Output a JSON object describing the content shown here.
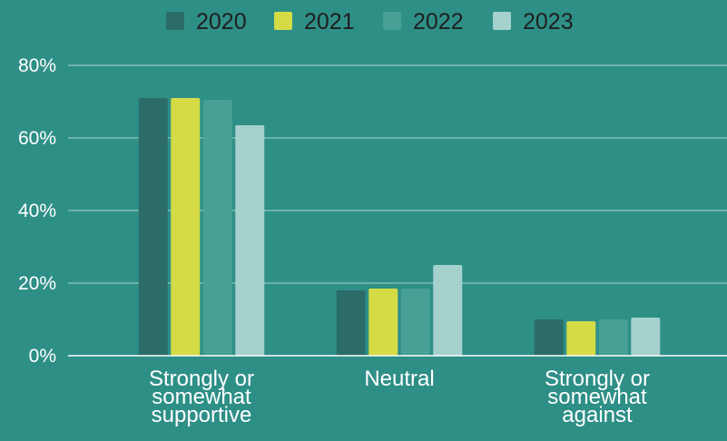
{
  "chart_data": {
    "type": "bar",
    "categories": [
      [
        "Strongly or",
        "somewhat",
        "supportive"
      ],
      [
        "Neutral"
      ],
      [
        "Strongly or",
        "somewhat",
        "against"
      ]
    ],
    "series": [
      {
        "name": "2020",
        "color": "#2b6c69",
        "values": [
          71,
          18,
          10
        ]
      },
      {
        "name": "2021",
        "color": "#d5db45",
        "values": [
          71,
          18.5,
          9.5
        ]
      },
      {
        "name": "2022",
        "color": "#479f95",
        "values": [
          70.5,
          18.5,
          10
        ]
      },
      {
        "name": "2023",
        "color": "#a5d1cd",
        "values": [
          63.5,
          25,
          10.5
        ]
      }
    ],
    "ylim": [
      0,
      80
    ],
    "yticks": [
      0,
      20,
      40,
      60,
      80
    ],
    "ytick_labels": [
      "0%",
      "20%",
      "40%",
      "60%",
      "80%"
    ],
    "grid": true,
    "legend_position": "top-center",
    "background": "#2e8f87",
    "gridline_color": "#a8d4cf",
    "axis_color": "#ffffff"
  }
}
